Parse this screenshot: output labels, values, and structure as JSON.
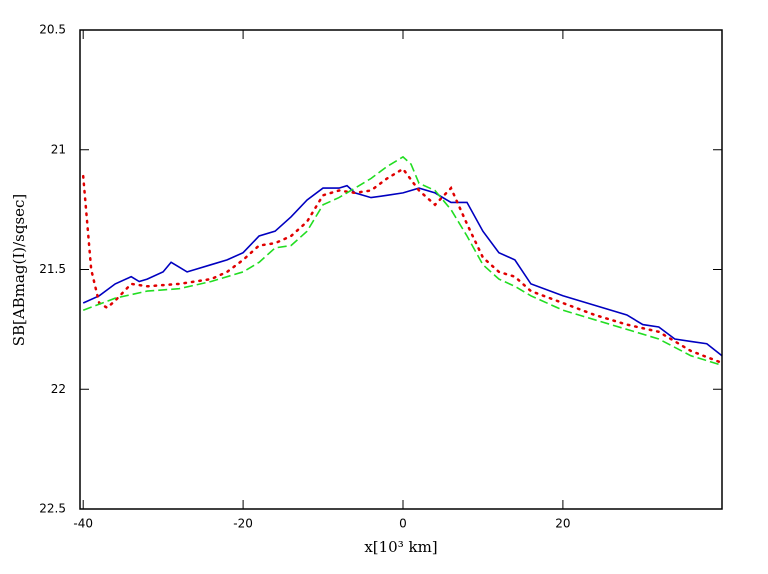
{
  "chart_data": {
    "type": "line",
    "xlabel": "x[10³ km]",
    "ylabel": "SB[ABmag(I)/sqsec]",
    "xlim": [
      -40.4,
      39.9
    ],
    "xticks": [
      -40,
      -20,
      0,
      20
    ],
    "ylim": [
      22.5,
      20.5
    ],
    "yticks": [
      20.5,
      21,
      21.5,
      22,
      22.5
    ],
    "series": [
      {
        "color": "#0000c0",
        "style": "solid",
        "x": [
          -40,
          -38,
          -36,
          -34,
          -33,
          -32,
          -30,
          -29,
          -28,
          -27,
          -26,
          -24,
          -22,
          -20,
          -18,
          -16,
          -14,
          -12,
          -10,
          -8,
          -7,
          -6,
          -4,
          -2,
          0,
          2,
          4,
          6,
          8,
          10,
          12,
          14,
          16,
          20,
          24,
          28,
          30,
          32,
          34,
          36,
          38,
          39.9
        ],
        "values": [
          21.64,
          21.61,
          21.56,
          21.53,
          21.55,
          21.54,
          21.51,
          21.47,
          21.49,
          21.51,
          21.5,
          21.48,
          21.46,
          21.43,
          21.36,
          21.34,
          21.28,
          21.21,
          21.16,
          21.16,
          21.15,
          21.18,
          21.2,
          21.19,
          21.18,
          21.16,
          21.18,
          21.22,
          21.22,
          21.34,
          21.43,
          21.46,
          21.56,
          21.61,
          21.65,
          21.69,
          21.73,
          21.74,
          21.79,
          21.8,
          21.81,
          21.86
        ]
      },
      {
        "color": "#e00000",
        "style": "dotted",
        "x": [
          -40,
          -39,
          -38,
          -37,
          -36,
          -34,
          -32,
          -28,
          -24,
          -22,
          -20,
          -18,
          -16,
          -14,
          -12,
          -10,
          -8,
          -6,
          -4,
          -2,
          0,
          2,
          4,
          6,
          8,
          10,
          12,
          14,
          16,
          20,
          24,
          28,
          32,
          36,
          39.9
        ],
        "values": [
          21.11,
          21.5,
          21.64,
          21.66,
          21.63,
          21.56,
          21.57,
          21.56,
          21.54,
          21.51,
          21.46,
          21.4,
          21.39,
          21.36,
          21.3,
          21.19,
          21.17,
          21.18,
          21.17,
          21.12,
          21.08,
          21.17,
          21.23,
          21.16,
          21.31,
          21.45,
          21.51,
          21.53,
          21.59,
          21.64,
          21.69,
          21.73,
          21.76,
          21.84,
          21.89
        ]
      },
      {
        "color": "#22dd22",
        "style": "dashed",
        "x": [
          -40,
          -36,
          -32,
          -28,
          -24,
          -20,
          -18,
          -16,
          -14,
          -12,
          -10,
          -8,
          -6,
          -4,
          -2,
          0,
          1,
          2,
          4,
          6,
          8,
          10,
          12,
          14,
          16,
          20,
          24,
          28,
          32,
          36,
          39.9
        ],
        "values": [
          21.67,
          21.62,
          21.59,
          21.58,
          21.55,
          21.51,
          21.47,
          21.41,
          21.4,
          21.34,
          21.23,
          21.2,
          21.16,
          21.12,
          21.07,
          21.03,
          21.06,
          21.14,
          21.17,
          21.25,
          21.36,
          21.48,
          21.54,
          21.57,
          21.61,
          21.67,
          21.71,
          21.75,
          21.79,
          21.86,
          21.9
        ]
      }
    ]
  }
}
